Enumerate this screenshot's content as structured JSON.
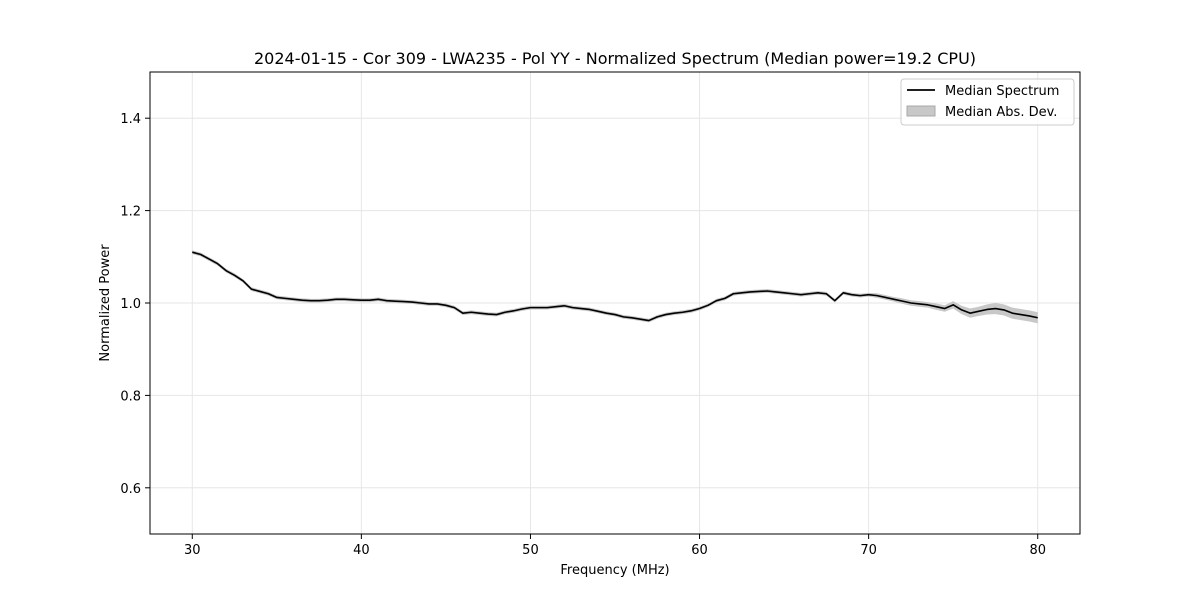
{
  "chart_data": {
    "type": "line",
    "title": "2024-01-15 - Cor 309 - LWA235 - Pol YY - Normalized Spectrum (Median power=19.2 CPU)",
    "xlabel": "Frequency (MHz)",
    "ylabel": "Normalized Power",
    "xlim": [
      27.5,
      82.5
    ],
    "ylim": [
      0.5,
      1.5
    ],
    "xticks": [
      30,
      40,
      50,
      60,
      70,
      80
    ],
    "yticks": [
      0.6,
      0.8,
      1.0,
      1.2,
      1.4
    ],
    "xtick_labels": [
      "30",
      "40",
      "50",
      "60",
      "70",
      "80"
    ],
    "ytick_labels": [
      "0.6",
      "0.8",
      "1.0",
      "1.2",
      "1.4"
    ],
    "grid": true,
    "legend_position": "top-right",
    "series": [
      {
        "name": "Median Spectrum",
        "color": "#000000",
        "x": [
          30,
          30.5,
          31,
          31.5,
          32,
          32.5,
          33,
          33.5,
          34,
          34.5,
          35,
          35.5,
          36,
          36.5,
          37,
          37.5,
          38,
          38.5,
          39,
          39.5,
          40,
          40.5,
          41,
          41.5,
          42,
          42.5,
          43,
          43.5,
          44,
          44.5,
          45,
          45.5,
          46,
          46.5,
          47,
          47.5,
          48,
          48.5,
          49,
          49.5,
          50,
          50.5,
          51,
          51.5,
          52,
          52.5,
          53,
          53.5,
          54,
          54.5,
          55,
          55.5,
          56,
          56.5,
          57,
          57.5,
          58,
          58.5,
          59,
          59.5,
          60,
          60.5,
          61,
          61.5,
          62,
          62.5,
          63,
          63.5,
          64,
          64.5,
          65,
          65.5,
          66,
          66.5,
          67,
          67.5,
          68,
          68.5,
          69,
          69.5,
          70,
          70.5,
          71,
          71.5,
          72,
          72.5,
          73,
          73.5,
          74,
          74.5,
          75,
          75.5,
          76,
          76.5,
          77,
          77.5,
          78,
          78.5,
          79,
          79.5,
          80
        ],
        "y": [
          1.11,
          1.105,
          1.095,
          1.085,
          1.07,
          1.06,
          1.048,
          1.03,
          1.025,
          1.02,
          1.012,
          1.01,
          1.008,
          1.006,
          1.005,
          1.005,
          1.006,
          1.008,
          1.008,
          1.007,
          1.006,
          1.006,
          1.008,
          1.005,
          1.004,
          1.003,
          1.002,
          1.0,
          0.998,
          0.998,
          0.995,
          0.99,
          0.978,
          0.98,
          0.978,
          0.976,
          0.975,
          0.98,
          0.983,
          0.987,
          0.99,
          0.99,
          0.99,
          0.992,
          0.994,
          0.99,
          0.988,
          0.986,
          0.982,
          0.978,
          0.975,
          0.97,
          0.968,
          0.965,
          0.962,
          0.97,
          0.975,
          0.978,
          0.98,
          0.983,
          0.988,
          0.995,
          1.005,
          1.01,
          1.02,
          1.022,
          1.024,
          1.025,
          1.026,
          1.024,
          1.022,
          1.02,
          1.018,
          1.02,
          1.022,
          1.02,
          1.005,
          1.022,
          1.018,
          1.016,
          1.018,
          1.016,
          1.012,
          1.008,
          1.004,
          1.0,
          0.998,
          0.996,
          0.992,
          0.988,
          0.996,
          0.985,
          0.978,
          0.982,
          0.986,
          0.988,
          0.985,
          0.978,
          0.975,
          0.972,
          0.968
        ],
        "mad": [
          0.004,
          0.004,
          0.004,
          0.004,
          0.004,
          0.004,
          0.004,
          0.004,
          0.004,
          0.004,
          0.004,
          0.004,
          0.004,
          0.004,
          0.004,
          0.004,
          0.004,
          0.004,
          0.004,
          0.004,
          0.004,
          0.004,
          0.004,
          0.004,
          0.004,
          0.004,
          0.004,
          0.004,
          0.004,
          0.004,
          0.004,
          0.004,
          0.004,
          0.004,
          0.004,
          0.004,
          0.004,
          0.004,
          0.004,
          0.004,
          0.004,
          0.004,
          0.004,
          0.004,
          0.004,
          0.004,
          0.004,
          0.004,
          0.004,
          0.004,
          0.004,
          0.004,
          0.004,
          0.004,
          0.004,
          0.004,
          0.004,
          0.004,
          0.004,
          0.004,
          0.004,
          0.004,
          0.004,
          0.004,
          0.004,
          0.004,
          0.004,
          0.004,
          0.004,
          0.004,
          0.004,
          0.004,
          0.004,
          0.004,
          0.004,
          0.004,
          0.004,
          0.004,
          0.004,
          0.004,
          0.004,
          0.005,
          0.005,
          0.005,
          0.006,
          0.006,
          0.006,
          0.006,
          0.007,
          0.007,
          0.008,
          0.009,
          0.01,
          0.01,
          0.011,
          0.012,
          0.012,
          0.012,
          0.012,
          0.012,
          0.012
        ]
      }
    ],
    "legend": [
      {
        "label": "Median Spectrum",
        "kind": "line",
        "color": "#000000"
      },
      {
        "label": "Median Abs. Dev.",
        "kind": "patch",
        "color": "#c8c8c8"
      }
    ]
  }
}
